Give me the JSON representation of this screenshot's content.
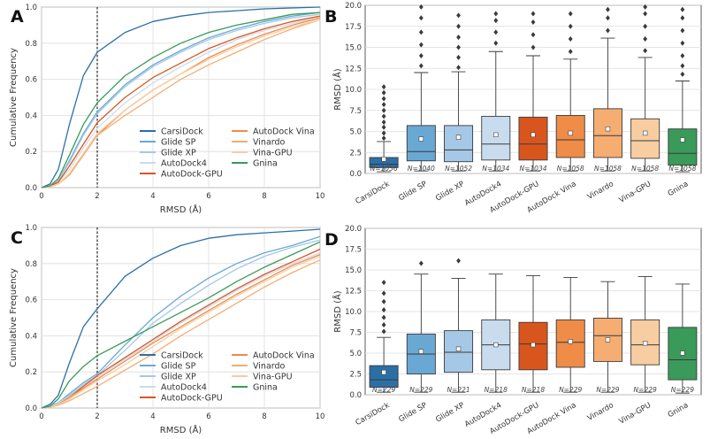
{
  "methods": [
    "CarsiDock",
    "Glide SP",
    "Glide XP",
    "AutoDock4",
    "AutoDock-GPU",
    "AutoDock Vina",
    "Vinardo",
    "Vina-GPU",
    "Gnina"
  ],
  "colors": [
    "#2b6fa6",
    "#6aa8d4",
    "#a5c8e6",
    "#c9dcee",
    "#d8561e",
    "#ee8c48",
    "#f5ad72",
    "#f8cda1",
    "#3a9a5a"
  ],
  "chart_data": [
    {
      "panel": "A",
      "type": "line",
      "xlabel": "RMSD (Å)",
      "ylabel": "Cumulative Frequency",
      "xlim": [
        0,
        10
      ],
      "ylim": [
        0,
        1.0
      ],
      "xticks": [
        "0",
        "2",
        "4",
        "6",
        "8",
        "10"
      ],
      "yticks": [
        "0.0",
        "0.2",
        "0.4",
        "0.6",
        "0.8",
        "1.0"
      ],
      "threshold_x": 2,
      "x": [
        0,
        0.3,
        0.6,
        1,
        1.5,
        2,
        3,
        4,
        5,
        6,
        7,
        8,
        9,
        10
      ],
      "series": [
        {
          "name": "CarsiDock",
          "values": [
            0,
            0.02,
            0.1,
            0.35,
            0.62,
            0.75,
            0.86,
            0.92,
            0.95,
            0.97,
            0.98,
            0.99,
            0.995,
            1.0
          ]
        },
        {
          "name": "Glide SP",
          "values": [
            0,
            0.01,
            0.04,
            0.15,
            0.3,
            0.42,
            0.57,
            0.68,
            0.76,
            0.83,
            0.88,
            0.92,
            0.95,
            0.97
          ]
        },
        {
          "name": "Glide XP",
          "values": [
            0,
            0.01,
            0.04,
            0.14,
            0.29,
            0.41,
            0.56,
            0.67,
            0.75,
            0.82,
            0.87,
            0.91,
            0.94,
            0.96
          ]
        },
        {
          "name": "AutoDock4",
          "values": [
            0,
            0.01,
            0.03,
            0.1,
            0.22,
            0.33,
            0.47,
            0.58,
            0.67,
            0.75,
            0.82,
            0.87,
            0.91,
            0.94
          ]
        },
        {
          "name": "AutoDock-GPU",
          "values": [
            0,
            0.01,
            0.03,
            0.12,
            0.24,
            0.36,
            0.5,
            0.61,
            0.69,
            0.77,
            0.83,
            0.88,
            0.92,
            0.95
          ]
        },
        {
          "name": "AutoDock Vina",
          "values": [
            0,
            0.005,
            0.02,
            0.07,
            0.18,
            0.29,
            0.43,
            0.54,
            0.63,
            0.72,
            0.79,
            0.85,
            0.9,
            0.94
          ]
        },
        {
          "name": "Vinardo",
          "values": [
            0,
            0.005,
            0.02,
            0.07,
            0.18,
            0.29,
            0.4,
            0.5,
            0.6,
            0.68,
            0.75,
            0.82,
            0.88,
            0.93
          ]
        },
        {
          "name": "Vina-GPU",
          "values": [
            0,
            0.005,
            0.02,
            0.08,
            0.19,
            0.3,
            0.43,
            0.54,
            0.63,
            0.71,
            0.78,
            0.84,
            0.89,
            0.93
          ]
        },
        {
          "name": "Gnina",
          "values": [
            0,
            0.01,
            0.05,
            0.18,
            0.35,
            0.47,
            0.62,
            0.72,
            0.8,
            0.86,
            0.9,
            0.93,
            0.96,
            0.97
          ]
        }
      ]
    },
    {
      "panel": "B",
      "type": "box",
      "ylabel": "RMSD (Å)",
      "ylim": [
        0,
        20
      ],
      "yticks": [
        "0.0",
        "2.5",
        "5.0",
        "7.5",
        "10.0",
        "12.5",
        "15.0",
        "17.5",
        "20.0"
      ],
      "categories": [
        "CarsiDock",
        "Glide SP",
        "Glide XP",
        "AutoDock4",
        "AutoDock-GPU",
        "AutoDock Vina",
        "Vinardo",
        "Vina-GPU",
        "Gnina"
      ],
      "n_labels": [
        "N=1056",
        "N=1040",
        "N=1052",
        "N=1034",
        "N=1034",
        "N=1058",
        "N=1058",
        "N=1058",
        "N=1058"
      ],
      "boxes": [
        {
          "whislo": 0.2,
          "q1": 0.7,
          "med": 1.1,
          "q3": 1.9,
          "whishi": 3.8,
          "mean": 1.7,
          "fliers": [
            4.2,
            4.8,
            5.5,
            6.1,
            6.8,
            7.5,
            8.2,
            8.9,
            9.6,
            10.3
          ]
        },
        {
          "whislo": 0.3,
          "q1": 1.5,
          "med": 2.6,
          "q3": 5.7,
          "whishi": 12.0,
          "mean": 4.1,
          "fliers": [
            12.8,
            14.0,
            15.3,
            16.8,
            18.5,
            19.8
          ]
        },
        {
          "whislo": 0.3,
          "q1": 1.4,
          "med": 2.8,
          "q3": 5.7,
          "whishi": 12.1,
          "mean": 4.3,
          "fliers": [
            12.6,
            13.8,
            15.0,
            16.2,
            17.5,
            18.8
          ]
        },
        {
          "whislo": 0.3,
          "q1": 1.6,
          "med": 3.5,
          "q3": 6.8,
          "whishi": 14.5,
          "mean": 4.6,
          "fliers": [
            15.5,
            16.8,
            18.2,
            19.0
          ]
        },
        {
          "whislo": 0.3,
          "q1": 1.6,
          "med": 3.5,
          "q3": 6.7,
          "whishi": 14.0,
          "mean": 4.6,
          "fliers": [
            15.0,
            16.5,
            18.0,
            19.0
          ]
        },
        {
          "whislo": 0.3,
          "q1": 1.9,
          "med": 4.0,
          "q3": 6.9,
          "whishi": 13.6,
          "mean": 4.8,
          "fliers": [
            14.5,
            16.0,
            17.5,
            19.0
          ]
        },
        {
          "whislo": 0.3,
          "q1": 1.9,
          "med": 4.5,
          "q3": 7.7,
          "whishi": 16.1,
          "mean": 5.3,
          "fliers": [
            17.0,
            18.5,
            19.5
          ]
        },
        {
          "whislo": 0.3,
          "q1": 1.8,
          "med": 3.9,
          "q3": 6.5,
          "whishi": 13.8,
          "mean": 4.8,
          "fliers": [
            14.6,
            16.0,
            17.5,
            19.0,
            19.8
          ]
        },
        {
          "whislo": 0.2,
          "q1": 1.0,
          "med": 2.4,
          "q3": 5.3,
          "whishi": 11.0,
          "mean": 4.0,
          "fliers": [
            11.8,
            12.8,
            14.0,
            15.5,
            17.0,
            18.5,
            19.5
          ]
        }
      ]
    },
    {
      "panel": "C",
      "type": "line",
      "xlabel": "RMSD (Å)",
      "ylabel": "Cumulative Frequency",
      "xlim": [
        0,
        10
      ],
      "ylim": [
        0,
        1.0
      ],
      "xticks": [
        "0",
        "2",
        "4",
        "6",
        "8",
        "10"
      ],
      "yticks": [
        "0.0",
        "0.2",
        "0.4",
        "0.6",
        "0.8",
        "1.0"
      ],
      "threshold_x": 2,
      "x": [
        0,
        0.3,
        0.6,
        1,
        1.5,
        2,
        3,
        4,
        5,
        6,
        7,
        8,
        9,
        10
      ],
      "series": [
        {
          "name": "CarsiDock",
          "values": [
            0,
            0.02,
            0.07,
            0.25,
            0.45,
            0.55,
            0.73,
            0.83,
            0.9,
            0.94,
            0.96,
            0.97,
            0.98,
            0.99
          ]
        },
        {
          "name": "Glide SP",
          "values": [
            0,
            0.01,
            0.03,
            0.08,
            0.14,
            0.19,
            0.35,
            0.5,
            0.62,
            0.72,
            0.8,
            0.86,
            0.9,
            0.95
          ]
        },
        {
          "name": "Glide XP",
          "values": [
            0,
            0.01,
            0.03,
            0.07,
            0.13,
            0.18,
            0.32,
            0.47,
            0.58,
            0.68,
            0.77,
            0.84,
            0.89,
            0.93
          ]
        },
        {
          "name": "AutoDock4",
          "values": [
            0,
            0.005,
            0.02,
            0.05,
            0.11,
            0.17,
            0.27,
            0.37,
            0.47,
            0.56,
            0.65,
            0.73,
            0.8,
            0.86
          ]
        },
        {
          "name": "AutoDock-GPU",
          "values": [
            0,
            0.005,
            0.02,
            0.06,
            0.12,
            0.18,
            0.28,
            0.38,
            0.48,
            0.57,
            0.66,
            0.74,
            0.81,
            0.88
          ]
        },
        {
          "name": "AutoDock Vina",
          "values": [
            0,
            0.005,
            0.02,
            0.06,
            0.11,
            0.16,
            0.26,
            0.36,
            0.45,
            0.54,
            0.63,
            0.71,
            0.79,
            0.85
          ]
        },
        {
          "name": "Vinardo",
          "values": [
            0,
            0.005,
            0.015,
            0.04,
            0.08,
            0.12,
            0.21,
            0.3,
            0.4,
            0.49,
            0.58,
            0.67,
            0.75,
            0.82
          ]
        },
        {
          "name": "Vina-GPU",
          "values": [
            0,
            0.005,
            0.02,
            0.05,
            0.1,
            0.15,
            0.24,
            0.34,
            0.44,
            0.53,
            0.62,
            0.7,
            0.78,
            0.84
          ]
        },
        {
          "name": "Gnina",
          "values": [
            0,
            0.01,
            0.05,
            0.15,
            0.23,
            0.29,
            0.37,
            0.45,
            0.53,
            0.61,
            0.7,
            0.78,
            0.85,
            0.92
          ]
        }
      ]
    },
    {
      "panel": "D",
      "type": "box",
      "ylabel": "RMSD (Å)",
      "ylim": [
        0,
        20
      ],
      "yticks": [
        "0.0",
        "2.5",
        "5.0",
        "7.5",
        "10.0",
        "12.5",
        "15.0",
        "17.5",
        "20.0"
      ],
      "categories": [
        "CarsiDock",
        "Glide SP",
        "Glide XP",
        "AutoDock4",
        "AutoDock-GPU",
        "AutoDock Vina",
        "Vinardo",
        "Vina-GPU",
        "Gnina"
      ],
      "n_labels": [
        "N=229",
        "N=229",
        "N=221",
        "N=218",
        "N=218",
        "N=229",
        "N=229",
        "N=229",
        "N=229"
      ],
      "boxes": [
        {
          "whislo": 0.3,
          "q1": 0.9,
          "med": 1.8,
          "q3": 3.5,
          "whishi": 6.9,
          "mean": 2.7,
          "fliers": [
            7.6,
            8.4,
            9.3,
            10.2,
            11.2,
            12.2,
            13.5
          ]
        },
        {
          "whislo": 0.3,
          "q1": 2.5,
          "med": 4.9,
          "q3": 7.3,
          "whishi": 14.5,
          "mean": 5.2,
          "fliers": [
            15.8
          ]
        },
        {
          "whislo": 0.3,
          "q1": 2.7,
          "med": 5.1,
          "q3": 7.7,
          "whishi": 14.0,
          "mean": 5.5,
          "fliers": [
            16.1
          ]
        },
        {
          "whislo": 0.3,
          "q1": 3.0,
          "med": 6.0,
          "q3": 9.0,
          "whishi": 14.5,
          "mean": 6.0,
          "fliers": []
        },
        {
          "whislo": 0.3,
          "q1": 3.0,
          "med": 6.1,
          "q3": 8.7,
          "whishi": 14.3,
          "mean": 6.0,
          "fliers": []
        },
        {
          "whislo": 0.3,
          "q1": 3.3,
          "med": 6.3,
          "q3": 9.0,
          "whishi": 14.1,
          "mean": 6.4,
          "fliers": []
        },
        {
          "whislo": 0.3,
          "q1": 4.0,
          "med": 7.1,
          "q3": 9.2,
          "whishi": 13.6,
          "mean": 6.6,
          "fliers": []
        },
        {
          "whislo": 0.3,
          "q1": 3.6,
          "med": 6.0,
          "q3": 9.0,
          "whishi": 14.2,
          "mean": 6.2,
          "fliers": []
        },
        {
          "whislo": 0.2,
          "q1": 1.8,
          "med": 4.2,
          "q3": 8.1,
          "whishi": 13.3,
          "mean": 5.0,
          "fliers": []
        }
      ]
    }
  ]
}
